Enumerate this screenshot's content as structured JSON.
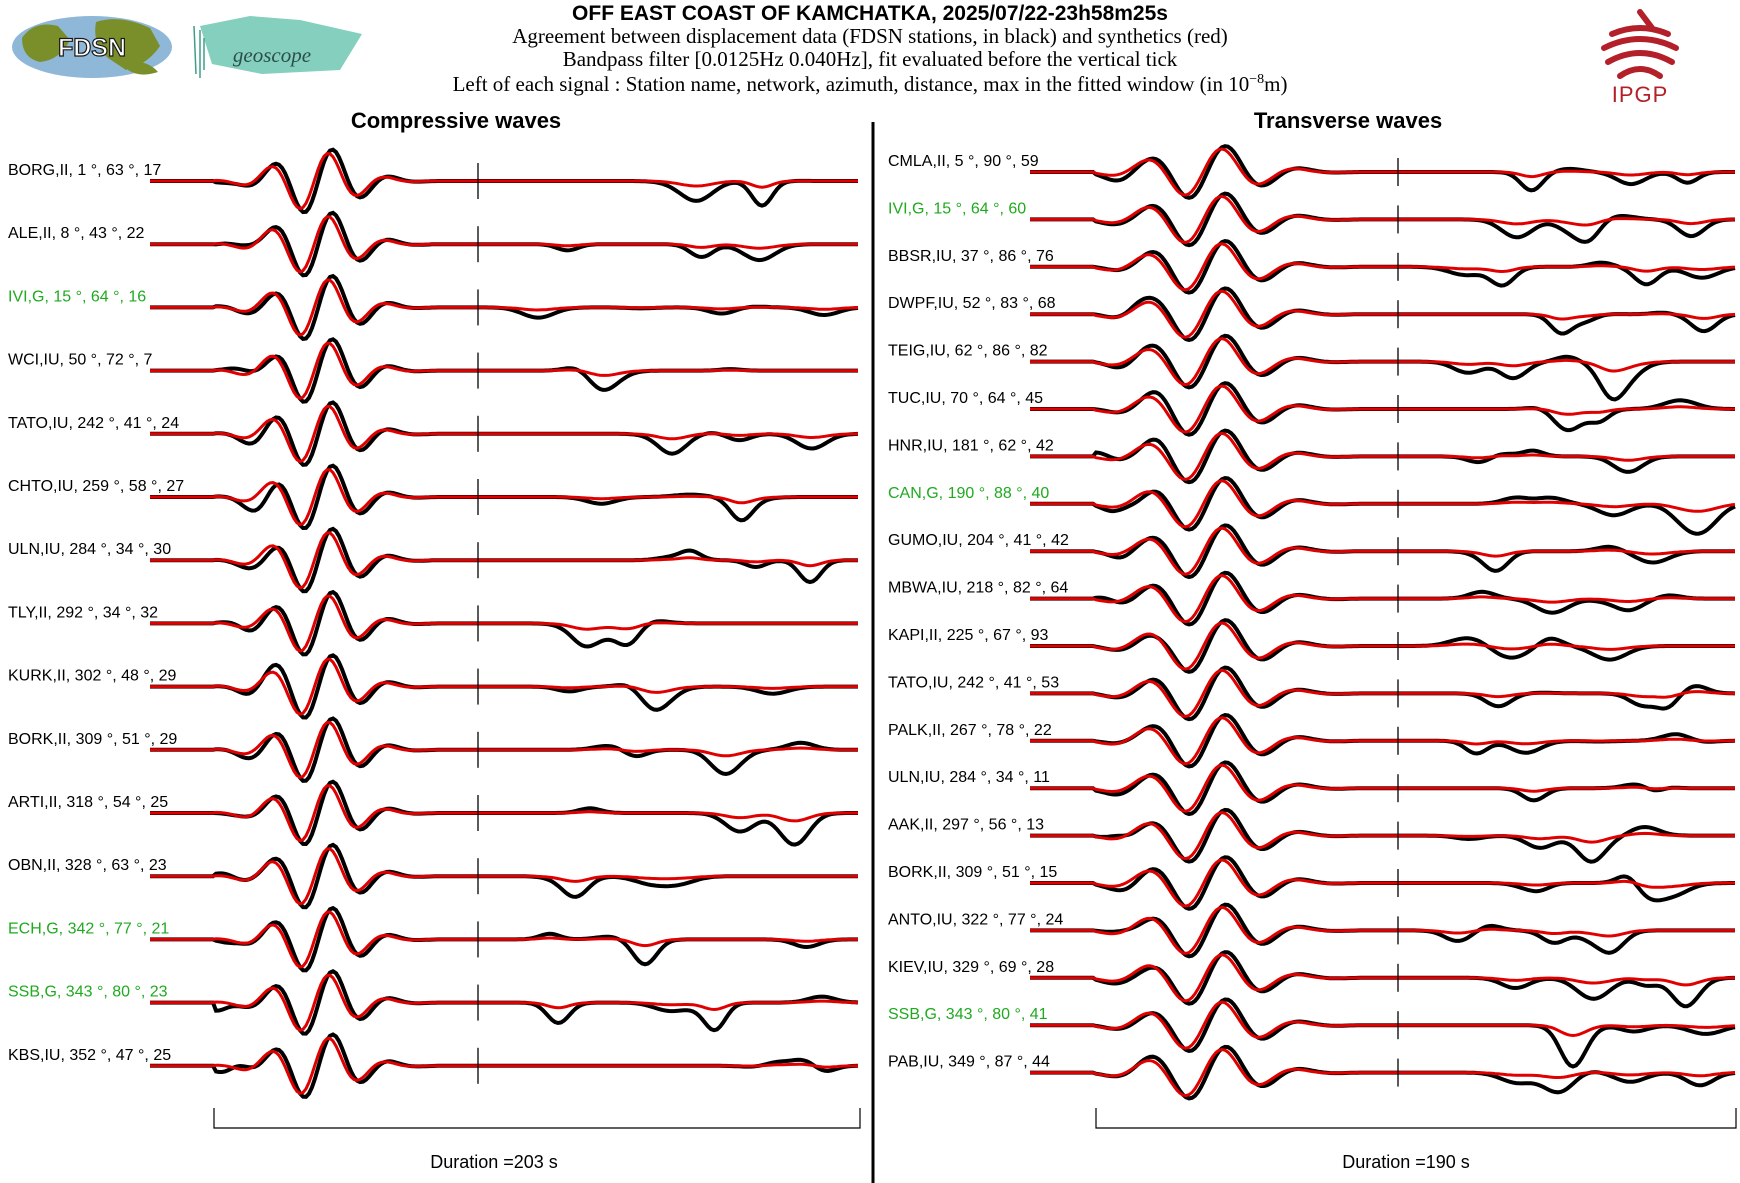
{
  "header": {
    "title": "OFF EAST COAST OF KAMCHATKA, 2025/07/22-23h58m25s",
    "line1": "Agreement between displacement data (FDSN stations, in black) and synthetics (red)",
    "line2": "Bandpass filter [0.0125Hz 0.040Hz], fit evaluated before the vertical tick",
    "line3_prefix": "Left of each signal : Station name, network, azimuth, distance, max in the fitted window (in 10",
    "line3_exp": "−8",
    "line3_suffix": "m)"
  },
  "logos": {
    "fdsn": "FDSN",
    "geoscope": "geoscope",
    "ipgp": "IPGP"
  },
  "colors": {
    "data": "#000000",
    "synthetic": "#e00000",
    "highlight_label": "#1faa1f",
    "normal_label": "#000000",
    "ipgp": "#b3202a",
    "fdsn_land": "#7a8f2a",
    "fdsn_sea": "#8fb7d8",
    "geoscope": "#6fc7b2"
  },
  "chart_data": [
    {
      "type": "line",
      "title": "Compressive waves",
      "duration_label": "Duration =203 s",
      "duration_s": 203,
      "series_legend": {
        "data": "displacement data (black)",
        "synthetic": "synthetics (red)"
      },
      "stations": [
        {
          "label": "BORG,II, 1 °, 63 °, 17",
          "station": "BORG",
          "network": "II",
          "azimuth": 1,
          "distance": 63,
          "max": 17,
          "highlight": false
        },
        {
          "label": "ALE,II, 8 °, 43 °, 22",
          "station": "ALE",
          "network": "II",
          "azimuth": 8,
          "distance": 43,
          "max": 22,
          "highlight": false
        },
        {
          "label": "IVI,G, 15 °, 64 °, 16",
          "station": "IVI",
          "network": "G",
          "azimuth": 15,
          "distance": 64,
          "max": 16,
          "highlight": true
        },
        {
          "label": "WCI,IU, 50 °, 72 °, 7",
          "station": "WCI",
          "network": "IU",
          "azimuth": 50,
          "distance": 72,
          "max": 7,
          "highlight": false
        },
        {
          "label": "TATO,IU, 242 °, 41 °, 24",
          "station": "TATO",
          "network": "IU",
          "azimuth": 242,
          "distance": 41,
          "max": 24,
          "highlight": false
        },
        {
          "label": "CHTO,IU, 259 °, 58 °, 27",
          "station": "CHTO",
          "network": "IU",
          "azimuth": 259,
          "distance": 58,
          "max": 27,
          "highlight": false
        },
        {
          "label": "ULN,IU, 284 °, 34 °, 30",
          "station": "ULN",
          "network": "IU",
          "azimuth": 284,
          "distance": 34,
          "max": 30,
          "highlight": false
        },
        {
          "label": "TLY,II, 292 °, 34 °, 32",
          "station": "TLY",
          "network": "II",
          "azimuth": 292,
          "distance": 34,
          "max": 32,
          "highlight": false
        },
        {
          "label": "KURK,II, 302 °, 48 °, 29",
          "station": "KURK",
          "network": "II",
          "azimuth": 302,
          "distance": 48,
          "max": 29,
          "highlight": false
        },
        {
          "label": "BORK,II, 309 °, 51 °, 29",
          "station": "BORK",
          "network": "II",
          "azimuth": 309,
          "distance": 51,
          "max": 29,
          "highlight": false
        },
        {
          "label": "ARTI,II, 318 °, 54 °, 25",
          "station": "ARTI",
          "network": "II",
          "azimuth": 318,
          "distance": 54,
          "max": 25,
          "highlight": false
        },
        {
          "label": "OBN,II, 328 °, 63 °, 23",
          "station": "OBN",
          "network": "II",
          "azimuth": 328,
          "distance": 63,
          "max": 23,
          "highlight": false
        },
        {
          "label": "ECH,G, 342 °, 77 °, 21",
          "station": "ECH",
          "network": "G",
          "azimuth": 342,
          "distance": 77,
          "max": 21,
          "highlight": true
        },
        {
          "label": "SSB,G, 343 °, 80 °, 23",
          "station": "SSB",
          "network": "G",
          "azimuth": 343,
          "distance": 80,
          "max": 23,
          "highlight": true
        },
        {
          "label": "KBS,IU, 352 °, 47 °, 25",
          "station": "KBS",
          "network": "IU",
          "azimuth": 352,
          "distance": 47,
          "max": 25,
          "highlight": false
        }
      ]
    },
    {
      "type": "line",
      "title": "Transverse waves",
      "duration_label": "Duration =190 s",
      "duration_s": 190,
      "series_legend": {
        "data": "displacement data (black)",
        "synthetic": "synthetics (red)"
      },
      "stations": [
        {
          "label": "CMLA,II, 5 °, 90 °, 59",
          "station": "CMLA",
          "network": "II",
          "azimuth": 5,
          "distance": 90,
          "max": 59,
          "highlight": false
        },
        {
          "label": "IVI,G, 15 °, 64 °, 60",
          "station": "IVI",
          "network": "G",
          "azimuth": 15,
          "distance": 64,
          "max": 60,
          "highlight": true
        },
        {
          "label": "BBSR,IU, 37 °, 86 °, 76",
          "station": "BBSR",
          "network": "IU",
          "azimuth": 37,
          "distance": 86,
          "max": 76,
          "highlight": false
        },
        {
          "label": "DWPF,IU, 52 °, 83 °, 68",
          "station": "DWPF",
          "network": "IU",
          "azimuth": 52,
          "distance": 83,
          "max": 68,
          "highlight": false
        },
        {
          "label": "TEIG,IU, 62 °, 86 °, 82",
          "station": "TEIG",
          "network": "IU",
          "azimuth": 62,
          "distance": 86,
          "max": 82,
          "highlight": false
        },
        {
          "label": "TUC,IU, 70 °, 64 °, 45",
          "station": "TUC",
          "network": "IU",
          "azimuth": 70,
          "distance": 64,
          "max": 45,
          "highlight": false
        },
        {
          "label": "HNR,IU, 181 °, 62 °, 42",
          "station": "HNR",
          "network": "IU",
          "azimuth": 181,
          "distance": 62,
          "max": 42,
          "highlight": false
        },
        {
          "label": "CAN,G, 190 °, 88 °, 40",
          "station": "CAN",
          "network": "G",
          "azimuth": 190,
          "distance": 88,
          "max": 40,
          "highlight": true
        },
        {
          "label": "GUMO,IU, 204 °, 41 °, 42",
          "station": "GUMO",
          "network": "IU",
          "azimuth": 204,
          "distance": 41,
          "max": 42,
          "highlight": false
        },
        {
          "label": "MBWA,IU, 218 °, 82 °, 64",
          "station": "MBWA",
          "network": "IU",
          "azimuth": 218,
          "distance": 82,
          "max": 64,
          "highlight": false
        },
        {
          "label": "KAPI,II, 225 °, 67 °, 93",
          "station": "KAPI",
          "network": "II",
          "azimuth": 225,
          "distance": 67,
          "max": 93,
          "highlight": false
        },
        {
          "label": "TATO,IU, 242 °, 41 °, 53",
          "station": "TATO",
          "network": "IU",
          "azimuth": 242,
          "distance": 41,
          "max": 53,
          "highlight": false
        },
        {
          "label": "PALK,II, 267 °, 78 °, 22",
          "station": "PALK",
          "network": "II",
          "azimuth": 267,
          "distance": 78,
          "max": 22,
          "highlight": false
        },
        {
          "label": "ULN,IU, 284 °, 34 °, 11",
          "station": "ULN",
          "network": "IU",
          "azimuth": 284,
          "distance": 34,
          "max": 11,
          "highlight": false
        },
        {
          "label": "AAK,II, 297 °, 56 °, 13",
          "station": "AAK",
          "network": "II",
          "azimuth": 297,
          "distance": 56,
          "max": 13,
          "highlight": false
        },
        {
          "label": "BORK,II, 309 °, 51 °, 15",
          "station": "BORK",
          "network": "II",
          "azimuth": 309,
          "distance": 51,
          "max": 15,
          "highlight": false
        },
        {
          "label": "ANTO,IU, 322 °, 77 °, 24",
          "station": "ANTO",
          "network": "IU",
          "azimuth": 322,
          "distance": 77,
          "max": 24,
          "highlight": false
        },
        {
          "label": "KIEV,IU, 329 °, 69 °, 28",
          "station": "KIEV",
          "network": "IU",
          "azimuth": 329,
          "distance": 69,
          "max": 28,
          "highlight": false
        },
        {
          "label": "SSB,G, 343 °, 80 °, 41",
          "station": "SSB",
          "network": "G",
          "azimuth": 343,
          "distance": 80,
          "max": 41,
          "highlight": true
        },
        {
          "label": "PAB,IU, 349 °, 87 °, 44",
          "station": "PAB",
          "network": "IU",
          "azimuth": 349,
          "distance": 87,
          "max": 44,
          "highlight": false
        }
      ]
    }
  ]
}
